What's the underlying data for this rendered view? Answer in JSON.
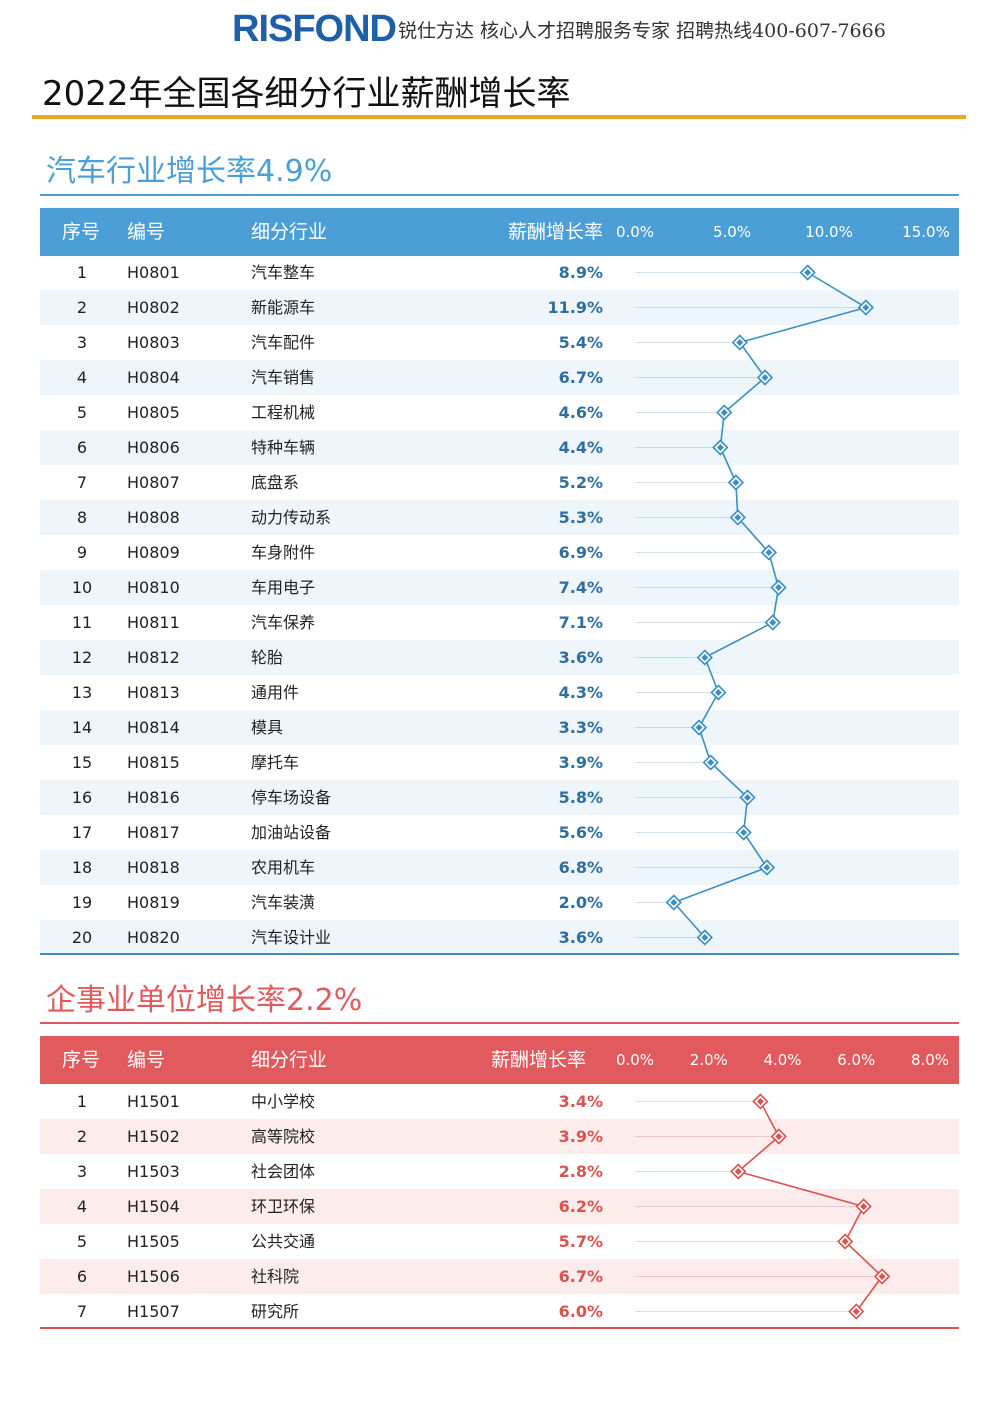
{
  "brand": {
    "logo_text": "RISFOND",
    "tagline": "锐仕方达 核心人才招聘服务专家 招聘热线400-607-7666"
  },
  "page_title": "2022年全国各细分行业薪酬增长率",
  "colors": {
    "gold_rule": "#e8a91c",
    "blue_header": "#4b9fd6",
    "blue_line": "#3a8fc4",
    "blue_row_alt": "#eef5fb",
    "blue_title": "#4b9fd6",
    "red_header": "#e05a5e",
    "red_line": "#d9534f",
    "red_row_alt": "#fcecec",
    "red_title": "#e05a5e"
  },
  "chart_data": [
    {
      "type": "line",
      "title": "汽车行业增长率4.9%",
      "columns": [
        "序号",
        "编号",
        "细分行业",
        "薪酬增长率"
      ],
      "axis_ticks": [
        "0.0%",
        "5.0%",
        "10.0%",
        "15.0%"
      ],
      "xlim": [
        0,
        15
      ],
      "unit": "%",
      "rows": [
        {
          "idx": "1",
          "code": "H0801",
          "industry": "汽车整车",
          "label": "8.9%",
          "value": 8.9
        },
        {
          "idx": "2",
          "code": "H0802",
          "industry": "新能源车",
          "label": "11.9%",
          "value": 11.9
        },
        {
          "idx": "3",
          "code": "H0803",
          "industry": "汽车配件",
          "label": "5.4%",
          "value": 5.4
        },
        {
          "idx": "4",
          "code": "H0804",
          "industry": "汽车销售",
          "label": "6.7%",
          "value": 6.7
        },
        {
          "idx": "5",
          "code": "H0805",
          "industry": "工程机械",
          "label": "4.6%",
          "value": 4.6
        },
        {
          "idx": "6",
          "code": "H0806",
          "industry": "特种车辆",
          "label": "4.4%",
          "value": 4.4
        },
        {
          "idx": "7",
          "code": "H0807",
          "industry": "底盘系",
          "label": "5.2%",
          "value": 5.2
        },
        {
          "idx": "8",
          "code": "H0808",
          "industry": "动力传动系",
          "label": "5.3%",
          "value": 5.3
        },
        {
          "idx": "9",
          "code": "H0809",
          "industry": "车身附件",
          "label": "6.9%",
          "value": 6.9
        },
        {
          "idx": "10",
          "code": "H0810",
          "industry": "车用电子",
          "label": "7.4%",
          "value": 7.4
        },
        {
          "idx": "11",
          "code": "H0811",
          "industry": "汽车保养",
          "label": "7.1%",
          "value": 7.1
        },
        {
          "idx": "12",
          "code": "H0812",
          "industry": "轮胎",
          "label": "3.6%",
          "value": 3.6
        },
        {
          "idx": "13",
          "code": "H0813",
          "industry": "通用件",
          "label": "4.3%",
          "value": 4.3
        },
        {
          "idx": "14",
          "code": "H0814",
          "industry": "模具",
          "label": "3.3%",
          "value": 3.3
        },
        {
          "idx": "15",
          "code": "H0815",
          "industry": "摩托车",
          "label": "3.9%",
          "value": 3.9
        },
        {
          "idx": "16",
          "code": "H0816",
          "industry": "停车场设备",
          "label": "5.8%",
          "value": 5.8
        },
        {
          "idx": "17",
          "code": "H0817",
          "industry": "加油站设备",
          "label": "5.6%",
          "value": 5.6
        },
        {
          "idx": "18",
          "code": "H0818",
          "industry": "农用机车",
          "label": "6.8%",
          "value": 6.8
        },
        {
          "idx": "19",
          "code": "H0819",
          "industry": "汽车装潢",
          "label": "2.0%",
          "value": 2.0
        },
        {
          "idx": "20",
          "code": "H0820",
          "industry": "汽车设计业",
          "label": "3.6%",
          "value": 3.6
        }
      ]
    },
    {
      "type": "line",
      "title": "企事业单位增长率2.2%",
      "columns": [
        "序号",
        "编号",
        "细分行业",
        "薪酬增长率"
      ],
      "axis_ticks": [
        "0.0%",
        "2.0%",
        "4.0%",
        "6.0%",
        "8.0%"
      ],
      "xlim": [
        0,
        8
      ],
      "unit": "%",
      "rows": [
        {
          "idx": "1",
          "code": "H1501",
          "industry": "中小学校",
          "label": "3.4%",
          "value": 3.4
        },
        {
          "idx": "2",
          "code": "H1502",
          "industry": "高等院校",
          "label": "3.9%",
          "value": 3.9
        },
        {
          "idx": "3",
          "code": "H1503",
          "industry": "社会团体",
          "label": "2.8%",
          "value": 2.8
        },
        {
          "idx": "4",
          "code": "H1504",
          "industry": "环卫环保",
          "label": "6.2%",
          "value": 6.2
        },
        {
          "idx": "5",
          "code": "H1505",
          "industry": "公共交通",
          "label": "5.7%",
          "value": 5.7
        },
        {
          "idx": "6",
          "code": "H1506",
          "industry": "社科院",
          "label": "6.7%",
          "value": 6.7
        },
        {
          "idx": "7",
          "code": "H1507",
          "industry": "研究所",
          "label": "6.0%",
          "value": 6.0
        }
      ]
    }
  ]
}
